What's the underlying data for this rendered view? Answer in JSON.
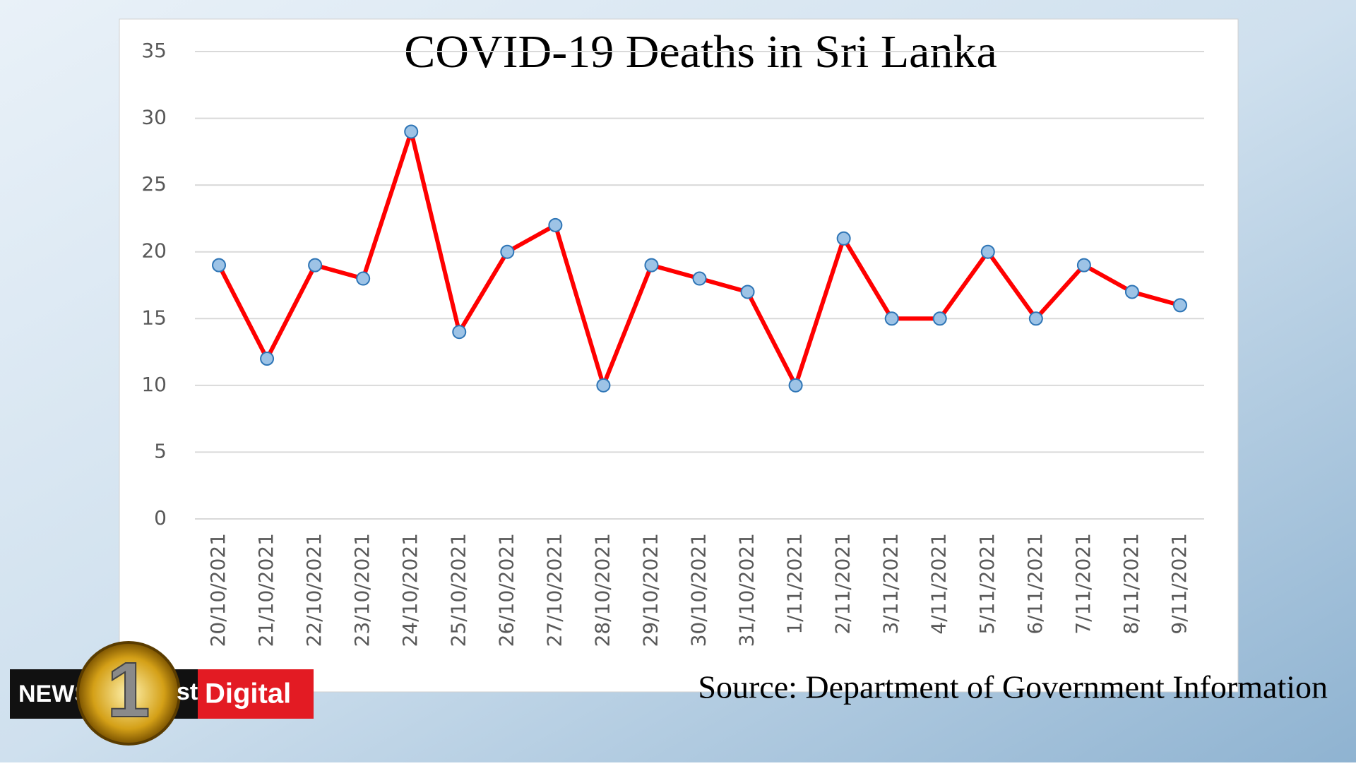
{
  "chart_data": {
    "type": "line",
    "title": "COVID-19 Deaths in Sri Lanka",
    "categories": [
      "20/10/2021",
      "21/10/2021",
      "22/10/2021",
      "23/10/2021",
      "24/10/2021",
      "25/10/2021",
      "26/10/2021",
      "27/10/2021",
      "28/10/2021",
      "29/10/2021",
      "30/10/2021",
      "31/10/2021",
      "1/11/2021",
      "2/11/2021",
      "3/11/2021",
      "4/11/2021",
      "5/11/2021",
      "6/11/2021",
      "7/11/2021",
      "8/11/2021",
      "9/11/2021"
    ],
    "values": [
      19,
      12,
      19,
      18,
      29,
      14,
      20,
      22,
      10,
      19,
      18,
      17,
      10,
      21,
      15,
      15,
      20,
      15,
      19,
      17,
      16
    ],
    "color": "#ff0000",
    "ylim": [
      0,
      35
    ],
    "yticks": [
      0,
      5,
      10,
      15,
      20,
      25,
      30,
      35
    ],
    "grid": true,
    "source": "Source: Department of Government Information"
  },
  "logo": {
    "news": "NEWS",
    "number": "1",
    "suffix": "st",
    "digital": "Digital"
  }
}
